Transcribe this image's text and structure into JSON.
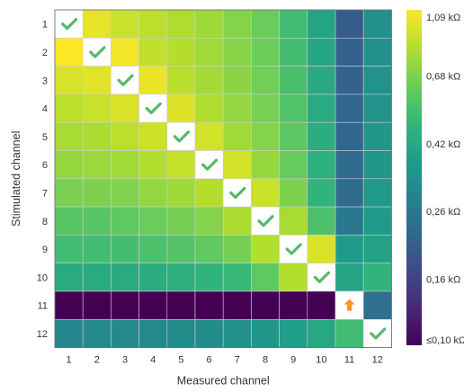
{
  "chart_data": {
    "type": "heatmap",
    "title": "",
    "xlabel": "Measured channel",
    "ylabel": "Stimulated channel",
    "x_categories": [
      "1",
      "2",
      "3",
      "4",
      "5",
      "6",
      "7",
      "8",
      "9",
      "10",
      "11",
      "12"
    ],
    "y_categories": [
      "1",
      "2",
      "3",
      "4",
      "5",
      "6",
      "7",
      "8",
      "9",
      "10",
      "11",
      "12"
    ],
    "colormap": "viridis",
    "color_scale": "log",
    "color_range": [
      0.1,
      1.09
    ],
    "colorbar_ticks": [
      "1,09 kΩ",
      "0,68 kΩ",
      "0,42 kΩ",
      "0,26 kΩ",
      "0,16 kΩ",
      "≤0,10 kΩ"
    ],
    "colorbar_tick_values": [
      1.09,
      0.68,
      0.42,
      0.26,
      0.16,
      0.1
    ],
    "values_kohm": [
      [
        null,
        1.0,
        0.9,
        0.86,
        0.82,
        0.77,
        0.7,
        0.63,
        0.52,
        0.4,
        0.2,
        0.33
      ],
      [
        1.09,
        null,
        1.05,
        0.88,
        0.84,
        0.78,
        0.71,
        0.64,
        0.53,
        0.41,
        0.21,
        0.33
      ],
      [
        0.95,
        0.98,
        null,
        1.02,
        0.85,
        0.79,
        0.72,
        0.65,
        0.54,
        0.42,
        0.21,
        0.34
      ],
      [
        0.86,
        0.9,
        0.95,
        null,
        0.97,
        0.82,
        0.74,
        0.67,
        0.56,
        0.43,
        0.22,
        0.34
      ],
      [
        0.8,
        0.81,
        0.86,
        0.91,
        null,
        0.93,
        0.78,
        0.7,
        0.59,
        0.44,
        0.22,
        0.35
      ],
      [
        0.75,
        0.76,
        0.78,
        0.83,
        0.89,
        null,
        0.93,
        0.75,
        0.62,
        0.45,
        0.23,
        0.35
      ],
      [
        0.67,
        0.68,
        0.69,
        0.74,
        0.77,
        0.84,
        null,
        0.9,
        0.68,
        0.47,
        0.23,
        0.36
      ],
      [
        0.58,
        0.58,
        0.6,
        0.63,
        0.66,
        0.7,
        0.81,
        null,
        0.8,
        0.55,
        0.26,
        0.37
      ],
      [
        0.52,
        0.52,
        0.53,
        0.55,
        0.57,
        0.6,
        0.66,
        0.83,
        null,
        0.95,
        0.37,
        0.39
      ],
      [
        0.43,
        0.43,
        0.43,
        0.44,
        0.45,
        0.47,
        0.5,
        0.6,
        0.83,
        null,
        0.4,
        0.47
      ],
      [
        0.05,
        0.05,
        0.05,
        0.05,
        0.05,
        0.05,
        0.05,
        0.05,
        0.06,
        0.07,
        null,
        0.24
      ],
      [
        0.3,
        0.31,
        0.31,
        0.31,
        0.32,
        0.32,
        0.33,
        0.35,
        0.38,
        0.42,
        0.52,
        null
      ]
    ],
    "markers": [
      {
        "row": 1,
        "col": 1,
        "icon": "check-icon"
      },
      {
        "row": 2,
        "col": 2,
        "icon": "check-icon"
      },
      {
        "row": 3,
        "col": 3,
        "icon": "check-icon"
      },
      {
        "row": 4,
        "col": 4,
        "icon": "check-icon"
      },
      {
        "row": 5,
        "col": 5,
        "icon": "check-icon"
      },
      {
        "row": 6,
        "col": 6,
        "icon": "check-icon"
      },
      {
        "row": 7,
        "col": 7,
        "icon": "check-icon"
      },
      {
        "row": 8,
        "col": 8,
        "icon": "check-icon"
      },
      {
        "row": 9,
        "col": 9,
        "icon": "check-icon"
      },
      {
        "row": 10,
        "col": 10,
        "icon": "check-icon"
      },
      {
        "row": 11,
        "col": 11,
        "icon": "warning-arrow-icon"
      },
      {
        "row": 12,
        "col": 12,
        "icon": "check-icon"
      }
    ],
    "colors": {
      "check": "#58b86a",
      "warning": "#f7931e",
      "grid": "#cfcfcf"
    }
  }
}
